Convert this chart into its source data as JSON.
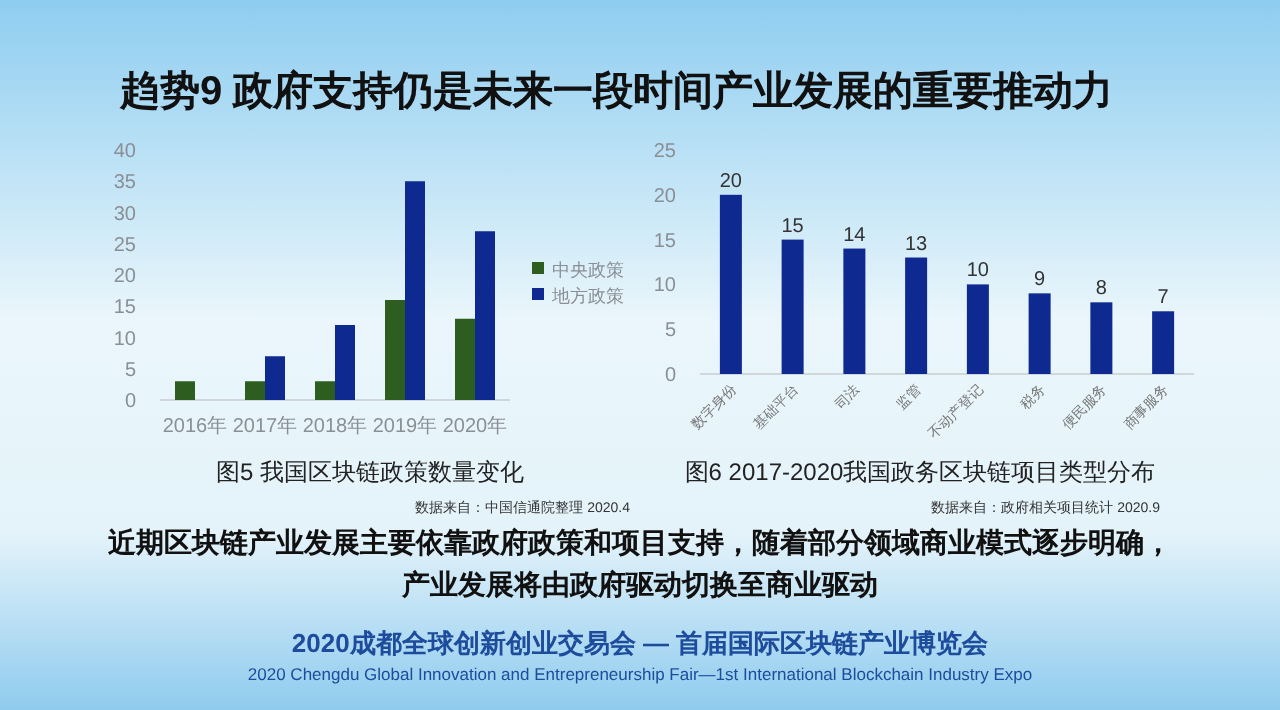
{
  "chart_data": [
    {
      "type": "other",
      "title": "趋势9 政府支持仍是未来一段时间产业发展的重要推动力",
      "annotations": [
        "近期区块链产业发展主要依靠政府政策和项目支持，随着部分领域商业模式逐步明确，",
        "产业发展将由政府驱动切换至商业驱动",
        "2020成都全球创新创业交易会 — 首届国际区块链产业博览会",
        "2020 Chengdu Global Innovation and Entrepreneurship Fair—1st International Blockchain Industry Expo"
      ]
    },
    {
      "type": "bar",
      "title": "图5 我国区块链政策数量变化",
      "annotations": [
        "数据来自：中国信通院整理 2020.4"
      ],
      "categories": [
        "2016年",
        "2017年",
        "2018年",
        "2019年",
        "2020年"
      ],
      "series": [
        {
          "name": "中央政策",
          "color": "#2d5e20",
          "values": [
            3,
            3,
            3,
            16,
            13
          ]
        },
        {
          "name": "地方政策",
          "color": "#0e2a90",
          "values": [
            0,
            7,
            12,
            35,
            27
          ]
        }
      ],
      "ylim": [
        0,
        40
      ],
      "yticks": [
        0,
        5,
        10,
        15,
        20,
        25,
        30,
        35,
        40
      ],
      "legend": "right",
      "grid": false
    },
    {
      "type": "bar",
      "title": "图6 2017-2020我国政务区块链项目类型分布",
      "annotations": [
        "数据来自：政府相关项目统计 2020.9"
      ],
      "categories": [
        "数字身份",
        "基础平台",
        "司法",
        "监管",
        "不动产登记",
        "税务",
        "便民服务",
        "商事服务"
      ],
      "values": [
        20,
        15,
        14,
        13,
        10,
        9,
        8,
        7
      ],
      "color": "#0e2a90",
      "ylim": [
        0,
        25
      ],
      "yticks": [
        0,
        5,
        10,
        15,
        20,
        25
      ],
      "data_labels": true,
      "grid": false
    }
  ]
}
